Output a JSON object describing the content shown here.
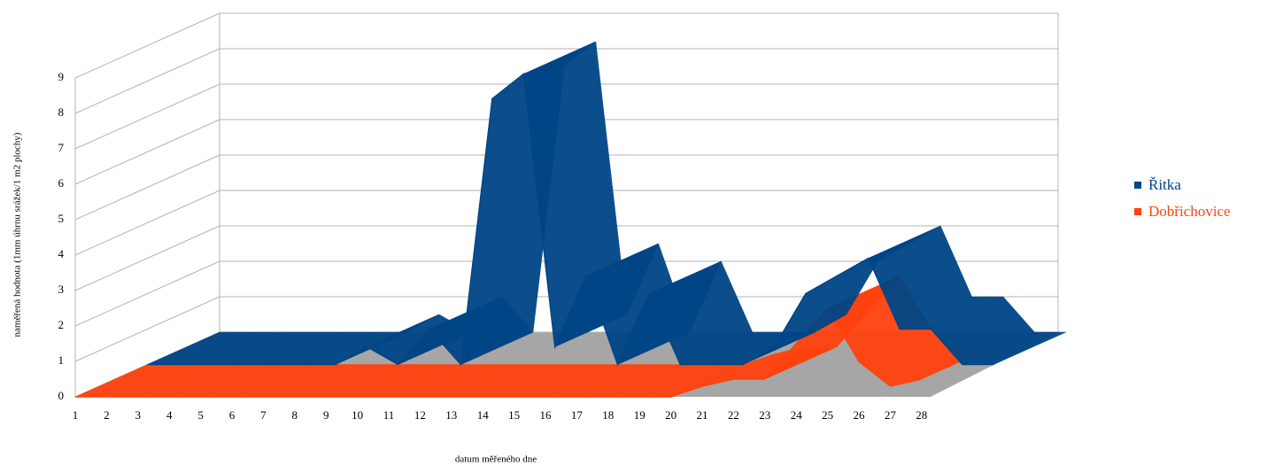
{
  "chart_data": {
    "type": "ribbon3d",
    "x_label": "datum měřeného dne",
    "y_label": "naměřená hodnota (1mm úhrnu srážek/1 m2 plochy)",
    "categories": [
      "1",
      "2",
      "3",
      "4",
      "5",
      "6",
      "7",
      "8",
      "9",
      "10",
      "11",
      "12",
      "13",
      "14",
      "15",
      "16",
      "17",
      "18",
      "19",
      "20",
      "21",
      "22",
      "23",
      "24",
      "25",
      "26",
      "27",
      "28"
    ],
    "ylim": [
      0,
      9
    ],
    "yticks": [
      0,
      1,
      2,
      3,
      4,
      5,
      6,
      7,
      8,
      9
    ],
    "grid": true,
    "series": [
      {
        "name": "Řitka",
        "color": "#004586",
        "values": [
          0,
          0,
          0,
          0,
          0,
          0,
          0,
          0.5,
          0,
          1,
          0,
          7.5,
          8.2,
          0.5,
          2.5,
          0,
          2,
          0,
          0,
          0,
          0.5,
          2,
          2.5,
          3,
          1,
          1,
          0,
          0
        ]
      },
      {
        "name": "Dobřichovice",
        "color": "#ff420e",
        "values": [
          0,
          0,
          0,
          0,
          0,
          0,
          0,
          0,
          0,
          0,
          0,
          0,
          0,
          0,
          0,
          0,
          0,
          0,
          0,
          0,
          0.3,
          0.5,
          0.5,
          1.5,
          2.5,
          1,
          0.3,
          0.5
        ]
      }
    ],
    "legend": "right"
  }
}
